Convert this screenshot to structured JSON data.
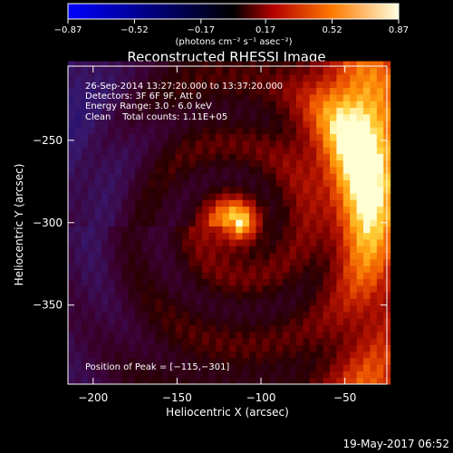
{
  "chart_data": {
    "type": "heatmap",
    "title": "Reconstructed RHESSI Image",
    "xlabel": "Heliocentric X (arcsec)",
    "ylabel": "Heliocentric Y (arcsec)",
    "xlim": [
      -215,
      -25
    ],
    "ylim": [
      -398,
      -205
    ],
    "x_ticks": [
      {
        "value": -200,
        "label": "−200"
      },
      {
        "value": -150,
        "label": "−150"
      },
      {
        "value": -100,
        "label": "−100"
      },
      {
        "value": -50,
        "label": "−50"
      }
    ],
    "y_ticks": [
      {
        "value": -250,
        "label": "−250"
      },
      {
        "value": -300,
        "label": "−300"
      },
      {
        "value": -350,
        "label": "−350"
      }
    ],
    "colorbar": {
      "range": [
        -0.87,
        0.87
      ],
      "ticks": [
        {
          "value": -0.87,
          "label": "−0.87"
        },
        {
          "value": -0.52,
          "label": "−0.52"
        },
        {
          "value": -0.17,
          "label": "−0.17"
        },
        {
          "value": 0.17,
          "label": "0.17"
        },
        {
          "value": 0.52,
          "label": "0.52"
        },
        {
          "value": 0.87,
          "label": "0.87"
        }
      ],
      "unit_label": "(photons cm⁻² s⁻¹ asec⁻²)"
    },
    "annotations": [
      "26-Sep-2014 13:27:20.000 to 13:37:20.000",
      "Detectors: 3F 6F 9F, Att 0",
      "Energy Range: 3.0 - 6.0 keV",
      "Clean    Total counts: 1.11E+05"
    ],
    "peak_label": "Position of Peak = [−115,−301]",
    "peak": {
      "x": -115,
      "y": -301
    }
  },
  "footer_date": "19-May-2017 06:52"
}
